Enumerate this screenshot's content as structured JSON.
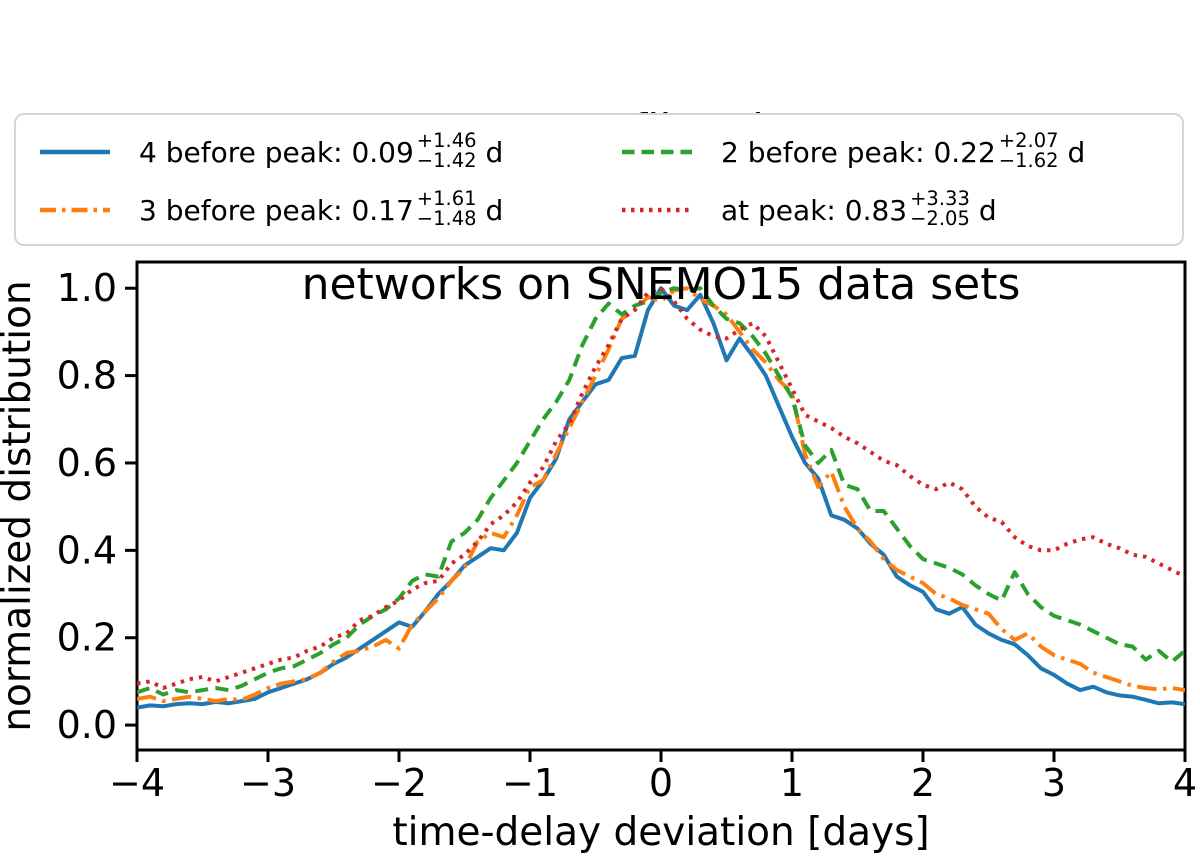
{
  "title": {
    "line1_pre": "RF, filter ",
    "line1_italic": "i",
    "line1_post": ",",
    "line2": "networks on SNEMO15 data sets"
  },
  "legend": {
    "items": [
      {
        "label": "4 before peak: ",
        "value": "0.09",
        "err_plus": "+1.46",
        "err_minus": "−1.42",
        "unit": "d",
        "color": "#1f77b4",
        "style": "solid"
      },
      {
        "label": "3 before peak: ",
        "value": "0.17",
        "err_plus": "+1.61",
        "err_minus": "−1.48",
        "unit": "d",
        "color": "#ff7f0e",
        "style": "dashdot"
      },
      {
        "label": "2 before peak: ",
        "value": "0.22",
        "err_plus": "+2.07",
        "err_minus": "−1.62",
        "unit": "d",
        "color": "#2ca02c",
        "style": "dashed"
      },
      {
        "label": "at peak: ",
        "value": "0.83",
        "err_plus": "+3.33",
        "err_minus": "−2.05",
        "unit": "d",
        "color": "#d62728",
        "style": "dotted"
      }
    ]
  },
  "chart_data": {
    "type": "line",
    "title": "RF, filter i,\nnetworks on SNEMO15 data sets",
    "xlabel": "time-delay deviation [days]",
    "ylabel": "normalized distribution",
    "xlim": [
      -4,
      4
    ],
    "ylim": [
      -0.057,
      1.06
    ],
    "grid": false,
    "legend_position": "upper center, 2 columns, above axes",
    "x_ticks": {
      "values": [
        -4,
        -3,
        -2,
        -1,
        0,
        1,
        2,
        3,
        4
      ],
      "labels": [
        "−4",
        "−3",
        "−2",
        "−1",
        "0",
        "1",
        "2",
        "3",
        "4"
      ]
    },
    "y_ticks": {
      "values": [
        0.0,
        0.2,
        0.4,
        0.6,
        0.8,
        1.0
      ],
      "labels": [
        "0.0",
        "0.2",
        "0.4",
        "0.6",
        "0.8",
        "1.0"
      ]
    },
    "x": [
      -4.0,
      -3.9,
      -3.8,
      -3.7,
      -3.6,
      -3.5,
      -3.4,
      -3.3,
      -3.2,
      -3.1,
      -3.0,
      -2.9,
      -2.8,
      -2.7,
      -2.6,
      -2.5,
      -2.4,
      -2.3,
      -2.2,
      -2.1,
      -2.0,
      -1.9,
      -1.8,
      -1.7,
      -1.6,
      -1.5,
      -1.4,
      -1.3,
      -1.2,
      -1.1,
      -1.0,
      -0.9,
      -0.8,
      -0.7,
      -0.6,
      -0.5,
      -0.4,
      -0.3,
      -0.2,
      -0.1,
      0.0,
      0.1,
      0.2,
      0.3,
      0.4,
      0.5,
      0.6,
      0.7,
      0.8,
      0.9,
      1.0,
      1.1,
      1.2,
      1.3,
      1.4,
      1.5,
      1.6,
      1.7,
      1.8,
      1.9,
      2.0,
      2.1,
      2.2,
      2.3,
      2.4,
      2.5,
      2.6,
      2.7,
      2.8,
      2.9,
      3.0,
      3.1,
      3.2,
      3.3,
      3.4,
      3.5,
      3.6,
      3.7,
      3.8,
      3.9,
      4.0
    ],
    "series": [
      {
        "name": "4 before peak: 0.09 +1.46/−1.42 d",
        "color": "#1f77b4",
        "linestyle": "solid",
        "values": [
          0.04,
          0.045,
          0.043,
          0.048,
          0.05,
          0.048,
          0.053,
          0.05,
          0.055,
          0.06,
          0.075,
          0.085,
          0.095,
          0.105,
          0.12,
          0.14,
          0.155,
          0.175,
          0.195,
          0.215,
          0.235,
          0.225,
          0.26,
          0.3,
          0.33,
          0.365,
          0.385,
          0.405,
          0.4,
          0.44,
          0.52,
          0.56,
          0.61,
          0.7,
          0.74,
          0.78,
          0.79,
          0.84,
          0.845,
          0.95,
          1.0,
          0.96,
          0.95,
          0.985,
          0.92,
          0.835,
          0.885,
          0.845,
          0.8,
          0.73,
          0.66,
          0.6,
          0.565,
          0.48,
          0.47,
          0.45,
          0.415,
          0.39,
          0.34,
          0.32,
          0.305,
          0.265,
          0.255,
          0.27,
          0.23,
          0.21,
          0.195,
          0.185,
          0.16,
          0.13,
          0.115,
          0.095,
          0.08,
          0.088,
          0.075,
          0.068,
          0.065,
          0.058,
          0.05,
          0.052,
          0.048
        ]
      },
      {
        "name": "3 before peak: 0.17 +1.61/−1.48 d",
        "color": "#ff7f0e",
        "linestyle": "dashdot",
        "values": [
          0.06,
          0.065,
          0.055,
          0.06,
          0.065,
          0.06,
          0.055,
          0.06,
          0.058,
          0.07,
          0.085,
          0.095,
          0.1,
          0.105,
          0.12,
          0.145,
          0.165,
          0.17,
          0.18,
          0.195,
          0.175,
          0.23,
          0.26,
          0.29,
          0.33,
          0.36,
          0.42,
          0.44,
          0.43,
          0.48,
          0.545,
          0.56,
          0.62,
          0.68,
          0.74,
          0.8,
          0.86,
          0.93,
          0.95,
          0.98,
          0.97,
          0.995,
          1.0,
          0.975,
          0.96,
          0.94,
          0.9,
          0.86,
          0.83,
          0.79,
          0.76,
          0.62,
          0.545,
          0.58,
          0.5,
          0.45,
          0.42,
          0.38,
          0.355,
          0.34,
          0.325,
          0.3,
          0.29,
          0.275,
          0.265,
          0.255,
          0.22,
          0.195,
          0.21,
          0.18,
          0.16,
          0.15,
          0.14,
          0.12,
          0.11,
          0.1,
          0.09,
          0.085,
          0.082,
          0.085,
          0.08
        ]
      },
      {
        "name": "2 before peak: 0.22 +2.07/−1.62 d",
        "color": "#2ca02c",
        "linestyle": "dashed",
        "values": [
          0.075,
          0.085,
          0.07,
          0.08,
          0.075,
          0.08,
          0.085,
          0.08,
          0.09,
          0.105,
          0.12,
          0.13,
          0.135,
          0.15,
          0.165,
          0.185,
          0.2,
          0.23,
          0.25,
          0.265,
          0.29,
          0.33,
          0.345,
          0.34,
          0.42,
          0.44,
          0.47,
          0.52,
          0.56,
          0.6,
          0.65,
          0.7,
          0.74,
          0.79,
          0.87,
          0.93,
          0.965,
          0.94,
          0.96,
          0.97,
          0.99,
          1.0,
          0.995,
          1.0,
          0.96,
          0.93,
          0.92,
          0.89,
          0.85,
          0.8,
          0.75,
          0.64,
          0.6,
          0.63,
          0.55,
          0.54,
          0.49,
          0.49,
          0.45,
          0.41,
          0.38,
          0.37,
          0.36,
          0.345,
          0.32,
          0.3,
          0.285,
          0.35,
          0.3,
          0.27,
          0.25,
          0.24,
          0.23,
          0.215,
          0.2,
          0.185,
          0.18,
          0.15,
          0.17,
          0.145,
          0.17
        ]
      },
      {
        "name": "at peak: 0.83 +3.33/−2.05 d",
        "color": "#d62728",
        "linestyle": "dotted",
        "values": [
          0.095,
          0.1,
          0.085,
          0.095,
          0.105,
          0.11,
          0.1,
          0.11,
          0.12,
          0.13,
          0.14,
          0.15,
          0.155,
          0.17,
          0.18,
          0.2,
          0.21,
          0.24,
          0.25,
          0.27,
          0.285,
          0.31,
          0.325,
          0.33,
          0.37,
          0.39,
          0.42,
          0.46,
          0.48,
          0.51,
          0.555,
          0.59,
          0.65,
          0.69,
          0.76,
          0.82,
          0.87,
          0.93,
          0.95,
          0.99,
          1.0,
          0.97,
          0.93,
          0.905,
          0.89,
          0.885,
          0.905,
          0.92,
          0.89,
          0.83,
          0.77,
          0.71,
          0.695,
          0.68,
          0.66,
          0.645,
          0.625,
          0.605,
          0.595,
          0.57,
          0.55,
          0.54,
          0.555,
          0.54,
          0.5,
          0.475,
          0.465,
          0.43,
          0.41,
          0.4,
          0.4,
          0.415,
          0.425,
          0.43,
          0.415,
          0.405,
          0.39,
          0.385,
          0.37,
          0.355,
          0.34
        ]
      }
    ]
  }
}
